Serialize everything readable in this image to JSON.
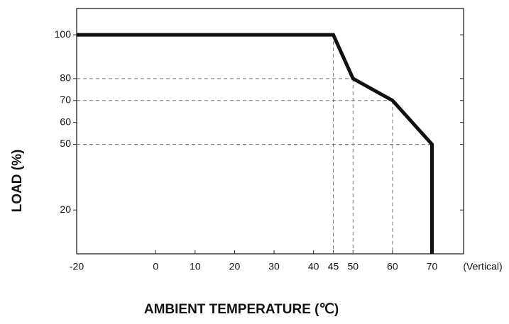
{
  "chart_data": {
    "type": "line",
    "ylabel": "LOAD (%)",
    "xlabel": "AMBIENT TEMPERATURE (℃)",
    "annotation": "(Vertical)",
    "x": [
      -20,
      45,
      50,
      60,
      70,
      70
    ],
    "series": [
      {
        "color": "#111111",
        "values": [
          100,
          100,
          80,
          70,
          50,
          0
        ]
      }
    ],
    "xlim": [
      -20,
      78
    ],
    "ylim": [
      0,
      112
    ],
    "xticks": [
      -20,
      0,
      10,
      20,
      30,
      40,
      45,
      50,
      60,
      70
    ],
    "yticks": [
      20,
      50,
      60,
      70,
      80,
      100
    ]
  }
}
